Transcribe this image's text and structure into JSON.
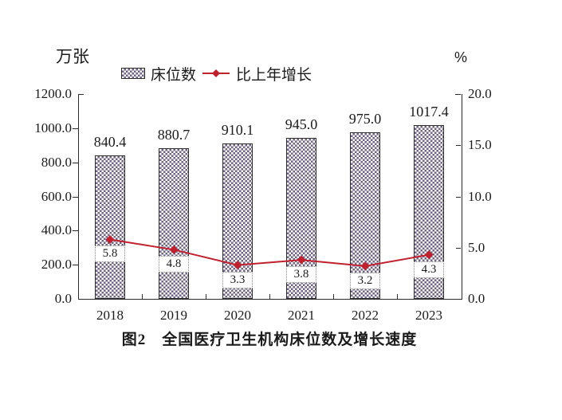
{
  "chart_data": {
    "type": "bar+line",
    "title": "图2　全国医疗卫生机构床位数及增长速度",
    "categories": [
      "2018",
      "2019",
      "2020",
      "2021",
      "2022",
      "2023"
    ],
    "series": [
      {
        "name": "床位数",
        "type": "bar",
        "axis": "left",
        "values": [
          840.4,
          880.7,
          910.1,
          945.0,
          975.0,
          1017.4
        ],
        "value_labels": [
          "840.4",
          "880.7",
          "910.1",
          "945.0",
          "975.0",
          "1017.4"
        ],
        "color": "#6f6386",
        "pattern": "checker"
      },
      {
        "name": "比上年增长",
        "type": "line",
        "axis": "right",
        "values": [
          5.8,
          4.8,
          3.3,
          3.8,
          3.2,
          4.3
        ],
        "value_labels": [
          "5.8",
          "4.8",
          "3.3",
          "3.8",
          "3.2",
          "4.3"
        ],
        "color": "#c1212e",
        "marker": "diamond"
      }
    ],
    "left_axis": {
      "unit_label": "万张",
      "min": 0,
      "max": 1200,
      "step": 200,
      "tick_labels": [
        "0.0",
        "200.0",
        "400.0",
        "600.0",
        "800.0",
        "1000.0",
        "1200.0"
      ]
    },
    "right_axis": {
      "unit_label": "%",
      "min": 0,
      "max": 20,
      "step": 5,
      "tick_labels": [
        "0.0",
        "5.0",
        "10.0",
        "15.0",
        "20.0"
      ]
    },
    "legend_position": "top",
    "grid": false,
    "axis_color": "#2b2b2b",
    "text_color": "#1b1b1b"
  }
}
